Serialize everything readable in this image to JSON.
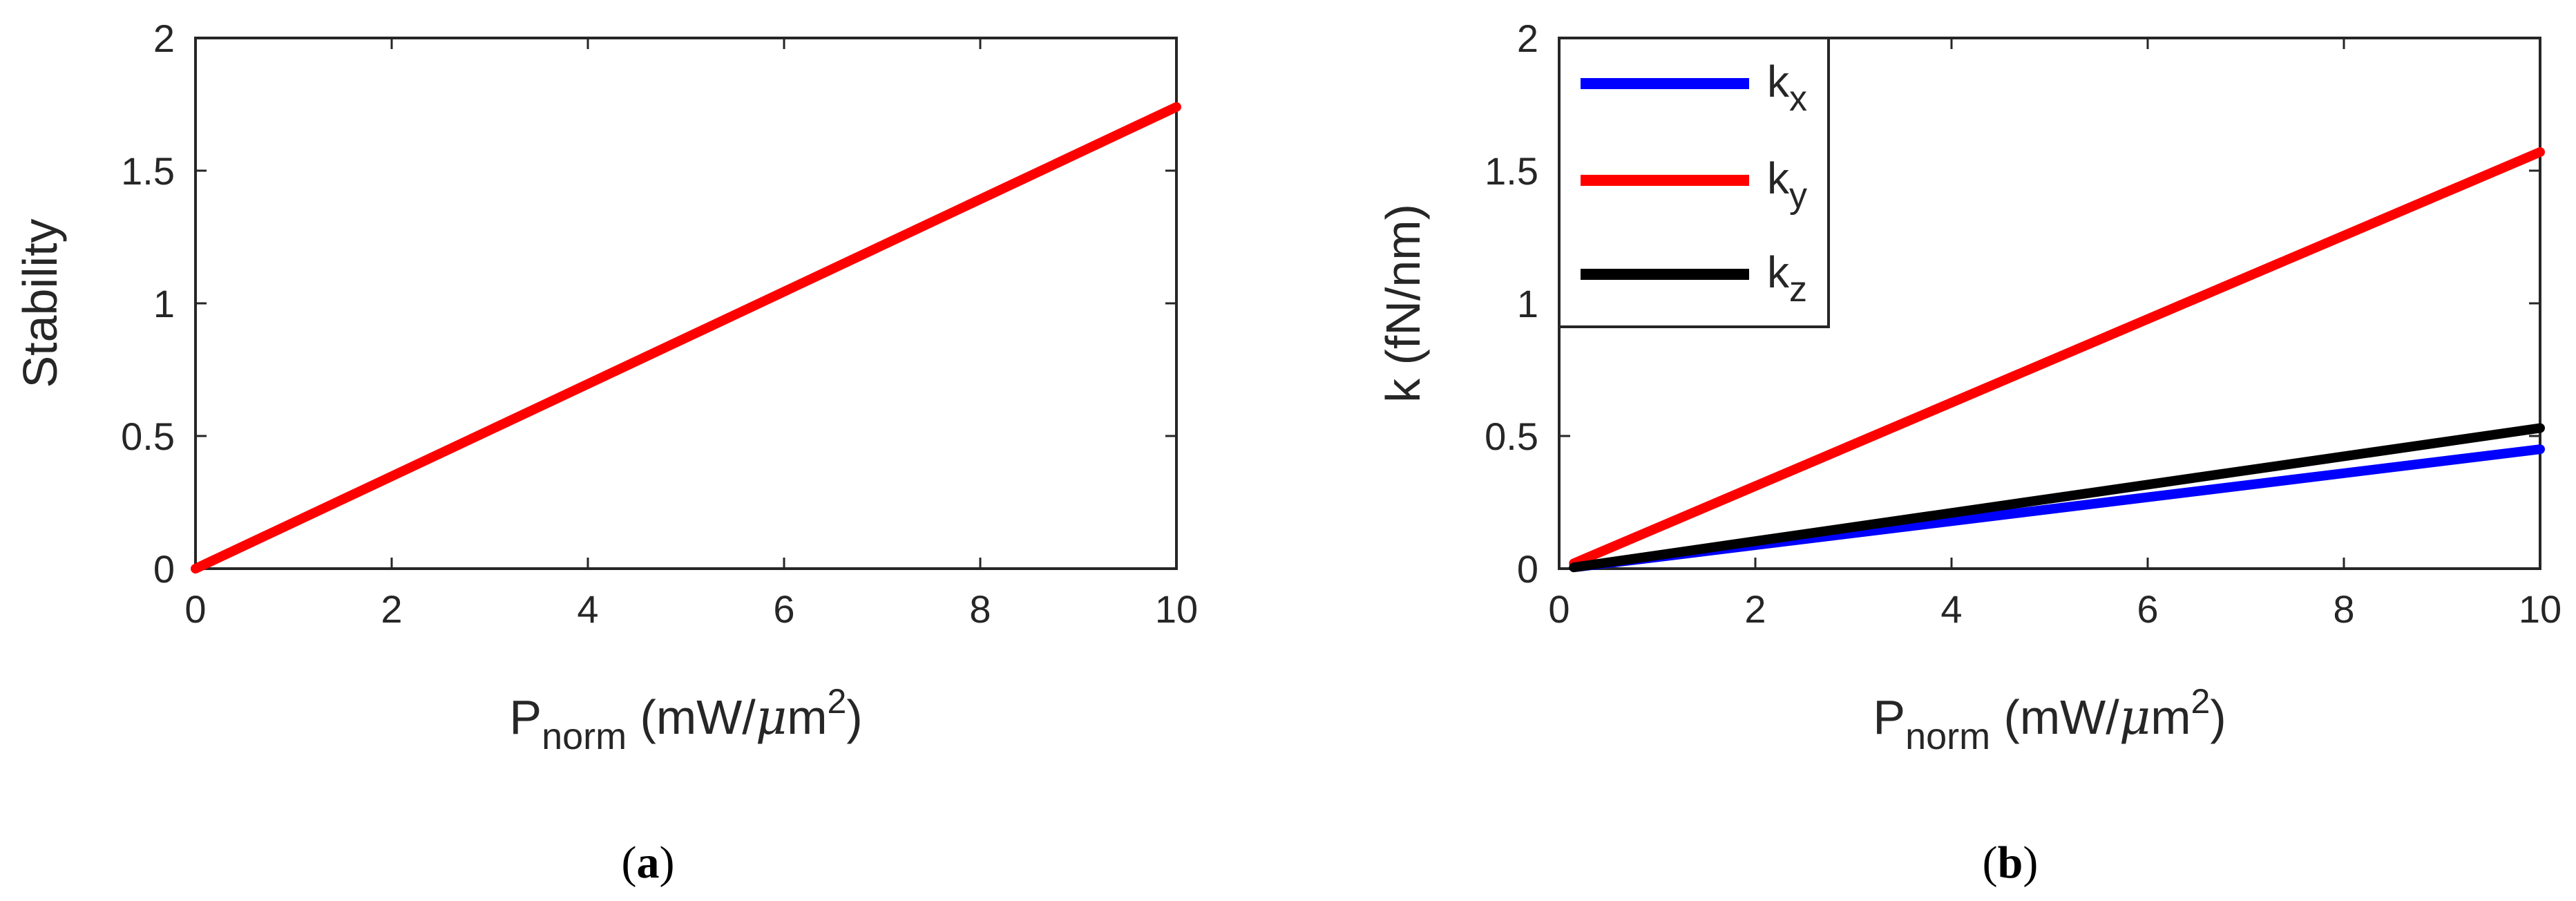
{
  "colors": {
    "red": "#ff0000",
    "blue": "#0000ff",
    "black": "#000000",
    "axis": "#262626"
  },
  "chart_data": [
    {
      "type": "line",
      "panel": "a",
      "caption": {
        "open": "(",
        "letter": "a",
        "close": ")"
      },
      "xlabel": {
        "main": "P",
        "sub": "norm",
        "unit": " (mW/",
        "mu": "μ",
        "unit2": "m",
        "sup": "2",
        "close": ")"
      },
      "ylabel": "Stability",
      "xlim": [
        0,
        10
      ],
      "ylim": [
        0,
        2
      ],
      "xticks": [
        0,
        2,
        4,
        6,
        8,
        10
      ],
      "yticks": [
        0,
        0.5,
        1,
        1.5,
        2
      ],
      "ytick_labels": [
        "0",
        "0.5",
        "1",
        "1.5",
        "2"
      ],
      "series": [
        {
          "name": "Stability",
          "color": "#ff0000",
          "x": [
            0,
            10
          ],
          "y": [
            0,
            1.74
          ]
        }
      ]
    },
    {
      "type": "line",
      "panel": "b",
      "caption": {
        "open": "(",
        "letter": "b",
        "close": ")"
      },
      "xlabel": {
        "main": "P",
        "sub": "norm",
        "unit": " (mW/",
        "mu": "μ",
        "unit2": "m",
        "sup": "2",
        "close": ")"
      },
      "ylabel": "k (fN/nm)",
      "xlim": [
        0,
        10
      ],
      "ylim": [
        0,
        2
      ],
      "xticks": [
        0,
        2,
        4,
        6,
        8,
        10
      ],
      "yticks": [
        0,
        0.5,
        1,
        1.5,
        2
      ],
      "ytick_labels": [
        "0",
        "0.5",
        "1",
        "1.5",
        "2"
      ],
      "legend_position": "top-left",
      "series": [
        {
          "name": "k",
          "sub": "x",
          "color": "#0000ff",
          "x": [
            0.15,
            10
          ],
          "y": [
            0.005,
            0.45
          ]
        },
        {
          "name": "k",
          "sub": "y",
          "color": "#ff0000",
          "x": [
            0.15,
            10
          ],
          "y": [
            0.02,
            1.57
          ]
        },
        {
          "name": "k",
          "sub": "z",
          "color": "#000000",
          "x": [
            0.15,
            10
          ],
          "y": [
            0.005,
            0.53
          ]
        }
      ]
    }
  ]
}
